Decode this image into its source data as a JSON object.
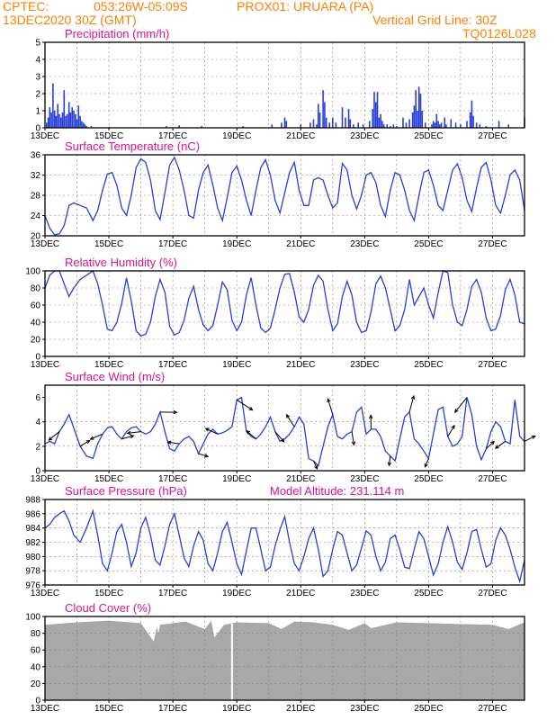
{
  "header": {
    "org": "CPTEC:",
    "coords": "053:26W-05:09S",
    "station": "PROX01: URUARA (PA)",
    "date": "13DEC2020 30Z (GMT)",
    "grid_note": "Vertical Grid Line: 30Z",
    "model_code": "TQ0126L028"
  },
  "colors": {
    "line": "#2a3fd8",
    "bar": "#2a3fd8",
    "title": "#e0128a",
    "header": "#ff8000",
    "cloud": "#a8a8a8"
  },
  "x_tick_labels": [
    "13DEC",
    "15DEC",
    "17DEC",
    "19DEC",
    "21DEC",
    "23DEC",
    "25DEC",
    "27DEC"
  ],
  "chart_data": [
    {
      "type": "bar",
      "title": "Precipitation (mm/h)",
      "ylim": [
        0,
        5
      ],
      "yticks": [
        "0",
        "1",
        "2",
        "3",
        "4",
        "5"
      ],
      "x_days": [
        0.05,
        0.1,
        0.15,
        0.2,
        0.25,
        0.3,
        0.35,
        0.4,
        0.45,
        0.5,
        0.55,
        0.6,
        0.65,
        0.7,
        0.75,
        0.8,
        0.85,
        0.9,
        0.95,
        1.0,
        1.05,
        1.1,
        1.15,
        1.2,
        1.25,
        1.3,
        1.45,
        2.0,
        3.8,
        4.2,
        4.9,
        6.2,
        7.1,
        7.4,
        7.5,
        7.55,
        8.0,
        8.3,
        8.4,
        8.5,
        8.55,
        8.6,
        8.7,
        8.75,
        8.8,
        8.9,
        9.0,
        9.1,
        9.3,
        9.4,
        9.5,
        9.55,
        9.65,
        9.8,
        9.95,
        10.15,
        10.25,
        10.3,
        10.35,
        10.4,
        10.45,
        10.5,
        10.55,
        10.6,
        10.7,
        10.8,
        10.9,
        11.0,
        11.2,
        11.3,
        11.4,
        11.5,
        11.55,
        11.6,
        11.65,
        11.7,
        11.75,
        11.8,
        11.9,
        12.1,
        12.15,
        12.2,
        12.25,
        12.3,
        12.35,
        12.4,
        12.5,
        12.55,
        12.7,
        12.85,
        13.0,
        13.2,
        13.3,
        13.35,
        13.4,
        13.5,
        13.6,
        13.8,
        14.2,
        14.5,
        15.0
      ],
      "values": [
        0.3,
        0.6,
        1.2,
        0.9,
        2.6,
        1.0,
        0.7,
        1.4,
        0.8,
        0.6,
        0.9,
        2.2,
        0.7,
        0.8,
        1.5,
        0.9,
        1.2,
        1.0,
        0.8,
        0.5,
        1.3,
        0.7,
        0.4,
        0.3,
        0.2,
        0.1,
        0.1,
        0.05,
        0.1,
        0.15,
        0.1,
        0.1,
        0.2,
        0.3,
        0.6,
        0.4,
        0.2,
        0.3,
        0.5,
        0.2,
        1.4,
        0.9,
        2.2,
        1.5,
        0.6,
        0.3,
        0.6,
        0.3,
        1.2,
        0.6,
        1.1,
        0.5,
        0.2,
        0.3,
        0.2,
        0.4,
        1.1,
        2.1,
        1.5,
        2.1,
        0.6,
        0.8,
        0.4,
        0.2,
        0.2,
        0.1,
        0.2,
        0.1,
        0.6,
        0.3,
        0.5,
        0.9,
        1.3,
        2.2,
        1.0,
        2.4,
        2.0,
        1.0,
        0.3,
        0.2,
        0.4,
        0.3,
        0.8,
        0.4,
        0.2,
        0.3,
        0.6,
        0.2,
        0.5,
        0.3,
        0.2,
        0.4,
        0.9,
        1.6,
        0.7,
        0.3,
        0.2,
        0.1,
        0.4,
        0.2,
        0.6
      ]
    },
    {
      "type": "line",
      "title": "Surface Temperature (nC)",
      "ylim": [
        20,
        36
      ],
      "yticks": [
        "20",
        "24",
        "28",
        "32",
        "36"
      ],
      "x_days": [
        0,
        0.15,
        0.3,
        0.45,
        0.6,
        0.75,
        0.9,
        1.1,
        1.3,
        1.5,
        1.65,
        1.8,
        1.95,
        2.1,
        2.25,
        2.4,
        2.55,
        2.7,
        2.85,
        3.0,
        3.15,
        3.3,
        3.45,
        3.6,
        3.75,
        3.9,
        4.05,
        4.2,
        4.35,
        4.5,
        4.65,
        4.8,
        4.95,
        5.1,
        5.25,
        5.4,
        5.55,
        5.7,
        5.85,
        6.0,
        6.15,
        6.3,
        6.45,
        6.6,
        6.75,
        6.9,
        7.05,
        7.2,
        7.35,
        7.5,
        7.65,
        7.8,
        7.95,
        8.1,
        8.25,
        8.4,
        8.55,
        8.7,
        8.85,
        9.0,
        9.15,
        9.3,
        9.45,
        9.6,
        9.75,
        9.9,
        10.05,
        10.2,
        10.35,
        10.5,
        10.65,
        10.8,
        10.95,
        11.1,
        11.25,
        11.4,
        11.55,
        11.7,
        11.85,
        12.0,
        12.15,
        12.3,
        12.45,
        12.6,
        12.75,
        12.9,
        13.05,
        13.2,
        13.35,
        13.5,
        13.65,
        13.8,
        13.95,
        14.1,
        14.25,
        14.4,
        14.55,
        14.7,
        14.85,
        15.0
      ],
      "values": [
        24,
        21.5,
        20.2,
        20.4,
        22,
        26,
        26.5,
        26,
        25.5,
        23,
        25,
        29,
        32.2,
        32.5,
        30,
        25.5,
        24,
        28,
        33.5,
        35.2,
        34.5,
        31,
        25,
        23.2,
        28.5,
        34,
        35.5,
        33,
        29,
        24,
        23.5,
        29,
        32.5,
        34,
        30,
        25.5,
        23,
        27.5,
        32.5,
        33.8,
        31,
        27,
        24,
        29,
        33.5,
        35,
        32,
        27,
        24.5,
        28.5,
        32.5,
        34.5,
        29,
        26,
        26,
        31,
        31.5,
        31,
        28,
        25.5,
        26.5,
        34.3,
        33,
        28,
        25.3,
        28,
        32,
        32.5,
        30.5,
        26,
        23.8,
        29,
        32.5,
        32,
        29,
        25,
        23,
        28,
        32.5,
        33,
        30,
        26,
        25,
        29,
        33,
        34.2,
        31.5,
        27,
        24.8,
        29.5,
        33.5,
        34.5,
        31,
        26,
        24.5,
        28,
        32,
        33,
        31,
        25
      ]
    },
    {
      "type": "line",
      "title": "Relative Humidity (%)",
      "ylim": [
        0,
        100
      ],
      "yticks": [
        "0",
        "20",
        "40",
        "60",
        "80",
        "100"
      ],
      "x_days": [
        0,
        0.15,
        0.3,
        0.45,
        0.6,
        0.75,
        0.9,
        1.1,
        1.3,
        1.5,
        1.65,
        1.8,
        1.95,
        2.1,
        2.25,
        2.4,
        2.55,
        2.7,
        2.85,
        3.0,
        3.15,
        3.3,
        3.45,
        3.6,
        3.75,
        3.9,
        4.05,
        4.2,
        4.35,
        4.5,
        4.65,
        4.8,
        4.95,
        5.1,
        5.25,
        5.4,
        5.55,
        5.7,
        5.85,
        6.0,
        6.15,
        6.3,
        6.45,
        6.6,
        6.75,
        6.9,
        7.05,
        7.2,
        7.35,
        7.5,
        7.65,
        7.8,
        7.95,
        8.1,
        8.25,
        8.4,
        8.55,
        8.7,
        8.85,
        9.0,
        9.15,
        9.3,
        9.45,
        9.6,
        9.75,
        9.9,
        10.05,
        10.2,
        10.35,
        10.5,
        10.65,
        10.8,
        10.95,
        11.1,
        11.25,
        11.4,
        11.55,
        11.7,
        11.85,
        12.0,
        12.15,
        12.3,
        12.45,
        12.6,
        12.75,
        12.9,
        13.05,
        13.2,
        13.35,
        13.5,
        13.65,
        13.8,
        13.95,
        14.1,
        14.25,
        14.4,
        14.55,
        14.7,
        14.85,
        15.0
      ],
      "values": [
        80,
        95,
        100,
        100,
        85,
        70,
        80,
        90,
        95,
        100,
        85,
        60,
        32,
        30,
        40,
        62,
        92,
        65,
        30,
        24,
        26,
        40,
        70,
        90,
        75,
        35,
        25,
        28,
        42,
        68,
        82,
        55,
        37,
        30,
        36,
        60,
        87,
        78,
        42,
        30,
        40,
        72,
        92,
        60,
        33,
        28,
        33,
        55,
        80,
        96,
        97,
        75,
        46,
        40,
        55,
        83,
        95,
        88,
        55,
        30,
        38,
        70,
        88,
        72,
        40,
        28,
        30,
        52,
        85,
        94,
        80,
        55,
        30,
        36,
        55,
        90,
        60,
        70,
        80,
        60,
        45,
        75,
        100,
        98,
        60,
        40,
        36,
        55,
        82,
        90,
        75,
        45,
        30,
        32,
        48,
        78,
        90,
        72,
        40,
        38
      ]
    },
    {
      "type": "line",
      "title": "Surface Wind (m/s)",
      "ylim": [
        0,
        7
      ],
      "yticks": [
        "0",
        "2",
        "4",
        "6"
      ],
      "x_days": [
        0,
        0.15,
        0.3,
        0.45,
        0.6,
        0.75,
        0.9,
        1.1,
        1.3,
        1.5,
        1.65,
        1.8,
        1.95,
        2.1,
        2.25,
        2.4,
        2.55,
        2.7,
        2.85,
        3.0,
        3.15,
        3.3,
        3.45,
        3.6,
        3.75,
        3.9,
        4.05,
        4.2,
        4.35,
        4.5,
        4.65,
        4.8,
        4.95,
        5.1,
        5.25,
        5.4,
        5.55,
        5.7,
        5.85,
        6.0,
        6.15,
        6.3,
        6.45,
        6.6,
        6.75,
        6.9,
        7.05,
        7.2,
        7.35,
        7.5,
        7.65,
        7.8,
        7.95,
        8.1,
        8.25,
        8.4,
        8.55,
        8.7,
        8.85,
        9.0,
        9.15,
        9.3,
        9.45,
        9.6,
        9.75,
        9.9,
        10.05,
        10.2,
        10.35,
        10.5,
        10.65,
        10.8,
        10.95,
        11.1,
        11.25,
        11.4,
        11.55,
        11.7,
        11.85,
        12.0,
        12.15,
        12.3,
        12.45,
        12.6,
        12.75,
        12.9,
        13.05,
        13.2,
        13.35,
        13.5,
        13.65,
        13.8,
        13.95,
        14.1,
        14.25,
        14.4,
        14.55,
        14.7,
        14.85,
        15.0
      ],
      "values": [
        2.2,
        2.4,
        2.2,
        3.2,
        3.8,
        4.6,
        3.5,
        2.0,
        1.2,
        1.0,
        2.2,
        3.0,
        3.5,
        3.6,
        3.0,
        2.6,
        3.2,
        3.5,
        3.6,
        3.2,
        3.0,
        3.2,
        3.8,
        4.8,
        3.2,
        1.8,
        1.6,
        2.2,
        2.6,
        2.8,
        2.4,
        1.4,
        2.2,
        3.0,
        3.4,
        3.0,
        3.1,
        3.3,
        3.6,
        5.8,
        6.0,
        3.2,
        2.8,
        2.6,
        3.0,
        3.6,
        4.4,
        3.2,
        2.4,
        2.6,
        3.0,
        3.6,
        4.4,
        3.8,
        1.0,
        0.8,
        0.4,
        2.0,
        3.6,
        4.6,
        2.8,
        2.6,
        3.0,
        3.2,
        4.8,
        5.2,
        3.0,
        3.4,
        3.4,
        2.8,
        1.6,
        1.2,
        0.8,
        2.6,
        4.4,
        4.8,
        2.6,
        2.2,
        1.6,
        1.0,
        3.0,
        5.0,
        5.2,
        2.8,
        2.0,
        2.2,
        2.8,
        6.0,
        4.6,
        2.0,
        0.9,
        1.8,
        3.2,
        4.0,
        3.6,
        2.4,
        2.2,
        5.8,
        2.8,
        2.4
      ]
    },
    {
      "type": "line",
      "title": "Surface Pressure (hPa)",
      "annotation": "Model Altitude: 231.114 m",
      "ylim": [
        976,
        988
      ],
      "yticks": [
        "976",
        "978",
        "980",
        "982",
        "984",
        "986",
        "988"
      ],
      "x_days": [
        0,
        0.15,
        0.3,
        0.45,
        0.6,
        0.75,
        0.9,
        1.1,
        1.3,
        1.5,
        1.65,
        1.8,
        1.95,
        2.1,
        2.25,
        2.4,
        2.55,
        2.7,
        2.85,
        3.0,
        3.15,
        3.3,
        3.45,
        3.6,
        3.75,
        3.9,
        4.05,
        4.2,
        4.35,
        4.5,
        4.65,
        4.8,
        4.95,
        5.1,
        5.25,
        5.4,
        5.55,
        5.7,
        5.85,
        6.0,
        6.15,
        6.3,
        6.45,
        6.6,
        6.75,
        6.9,
        7.05,
        7.2,
        7.35,
        7.5,
        7.65,
        7.8,
        7.95,
        8.1,
        8.25,
        8.4,
        8.55,
        8.7,
        8.85,
        9.0,
        9.15,
        9.3,
        9.45,
        9.6,
        9.75,
        9.9,
        10.05,
        10.2,
        10.35,
        10.5,
        10.65,
        10.8,
        10.95,
        11.1,
        11.25,
        11.4,
        11.55,
        11.7,
        11.85,
        12.0,
        12.15,
        12.3,
        12.45,
        12.6,
        12.75,
        12.9,
        13.05,
        13.2,
        13.35,
        13.5,
        13.65,
        13.8,
        13.95,
        14.1,
        14.25,
        14.4,
        14.55,
        14.7,
        14.85,
        15.0
      ],
      "values": [
        984,
        984.5,
        985.5,
        986,
        986.4,
        985,
        983,
        982,
        984,
        986.4,
        983,
        979,
        978,
        980.5,
        983.5,
        984.5,
        982,
        978.6,
        980.5,
        984,
        985.5,
        983,
        979.5,
        978.8,
        981.5,
        984.5,
        986,
        983,
        979.8,
        978.6,
        981.5,
        983.5,
        982.3,
        979,
        978,
        980.5,
        983.5,
        984.8,
        982,
        979,
        977.5,
        980.8,
        984,
        984,
        981,
        978,
        978.5,
        981.5,
        983.8,
        985.6,
        982,
        979,
        978,
        980,
        982.5,
        984,
        981,
        977.2,
        978,
        981,
        983.5,
        983,
        980.5,
        978,
        978.8,
        981.2,
        983.6,
        983,
        980,
        978,
        979.2,
        982.5,
        983,
        981,
        978.5,
        978.3,
        981,
        983.5,
        982.5,
        980,
        977.4,
        979,
        982,
        984.2,
        982,
        979.2,
        978.2,
        980.5,
        983.5,
        983.8,
        981,
        978.5,
        979,
        982.3,
        984,
        983,
        981,
        978.5,
        976.5,
        979.5
      ]
    },
    {
      "type": "bar",
      "title": "Cloud Cover (%)",
      "ylim": [
        0,
        100
      ],
      "yticks": [
        "0",
        "20",
        "40",
        "60",
        "80",
        "100"
      ],
      "x_days": [
        0,
        1,
        2,
        3,
        3.4,
        3.5,
        3.55,
        3.6,
        4.0,
        4.4,
        5.0,
        5.2,
        5.3,
        5.6,
        6.0,
        7.0,
        7.4,
        7.8,
        8.4,
        9.0,
        9.5,
        10.0,
        10.2,
        11.0,
        12.0,
        13.0,
        14.0,
        14.5,
        15.0
      ],
      "values": [
        90,
        93,
        95,
        92,
        70,
        88,
        80,
        90,
        92,
        94,
        85,
        95,
        75,
        90,
        93,
        92,
        85,
        94,
        93,
        90,
        84,
        92,
        86,
        93,
        92,
        91,
        90,
        85,
        93
      ],
      "gap_day": 5.85
    }
  ]
}
